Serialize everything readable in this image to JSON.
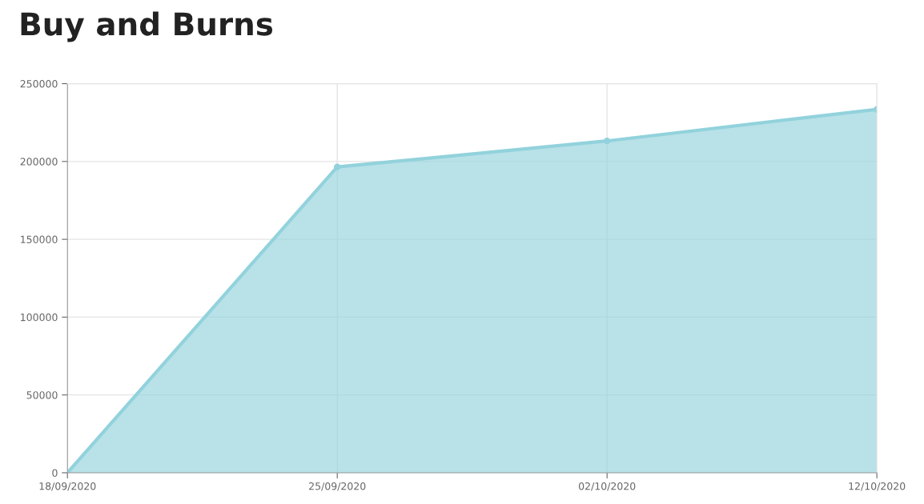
{
  "chart_data": {
    "type": "area",
    "title": "Buy and Burns",
    "categories": [
      "18/09/2020",
      "25/09/2020",
      "02/10/2020",
      "12/10/2020"
    ],
    "series": [
      {
        "color": "#92d2dc",
        "values": [
          0,
          196500,
          213200,
          233500
        ]
      }
    ],
    "ylim": [
      0,
      250000
    ],
    "yticks": [
      0,
      50000,
      100000,
      150000,
      200000,
      250000
    ],
    "grid": true,
    "marker": "circle"
  }
}
